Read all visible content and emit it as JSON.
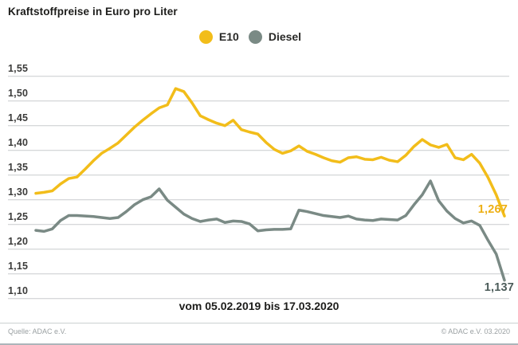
{
  "title": "Kraftstoffpreise in Euro pro Liter",
  "legend": [
    {
      "label": "E10",
      "color": "#F2BD1A"
    },
    {
      "label": "Diesel",
      "color": "#7A8A85"
    }
  ],
  "chart_data": {
    "type": "line",
    "title": "Kraftstoffpreise in Euro pro Liter",
    "ylabel": "Euro pro Liter",
    "x_caption": "vom 05.02.2019 bis 17.03.2020",
    "x_range": [
      "05.02.2019",
      "17.03.2020"
    ],
    "x_unit": "weeks",
    "ylim": [
      1.1,
      1.55
    ],
    "yticks": [
      1.55,
      1.5,
      1.45,
      1.4,
      1.35,
      1.3,
      1.25,
      1.2,
      1.15,
      1.1
    ],
    "ytick_labels": [
      "1,55",
      "1,50",
      "1,45",
      "1,40",
      "1,35",
      "1,30",
      "1,25",
      "1,20",
      "1,15",
      "1,10"
    ],
    "grid": true,
    "legend_position": "top-center",
    "gridline_color": "#c8cccd",
    "series": [
      {
        "name": "E10",
        "color": "#F2BD1A",
        "end_label": "1,267",
        "end_label_color": "#EDAF14",
        "values": [
          1.313,
          1.315,
          1.318,
          1.332,
          1.343,
          1.346,
          1.362,
          1.379,
          1.394,
          1.404,
          1.415,
          1.431,
          1.447,
          1.461,
          1.474,
          1.486,
          1.492,
          1.525,
          1.519,
          1.496,
          1.47,
          1.462,
          1.455,
          1.45,
          1.461,
          1.442,
          1.437,
          1.433,
          1.416,
          1.402,
          1.394,
          1.399,
          1.409,
          1.398,
          1.392,
          1.385,
          1.379,
          1.376,
          1.385,
          1.387,
          1.382,
          1.381,
          1.386,
          1.38,
          1.377,
          1.39,
          1.408,
          1.422,
          1.411,
          1.406,
          1.412,
          1.385,
          1.381,
          1.392,
          1.374,
          1.345,
          1.31,
          1.267
        ]
      },
      {
        "name": "Diesel",
        "color": "#7A8A85",
        "end_label": "1,137",
        "end_label_color": "#4C5C5A",
        "values": [
          1.238,
          1.236,
          1.241,
          1.258,
          1.268,
          1.268,
          1.267,
          1.266,
          1.264,
          1.262,
          1.264,
          1.276,
          1.29,
          1.3,
          1.306,
          1.322,
          1.299,
          1.285,
          1.271,
          1.262,
          1.256,
          1.259,
          1.261,
          1.254,
          1.257,
          1.256,
          1.251,
          1.237,
          1.239,
          1.24,
          1.24,
          1.241,
          1.279,
          1.276,
          1.272,
          1.268,
          1.266,
          1.264,
          1.267,
          1.261,
          1.259,
          1.258,
          1.261,
          1.26,
          1.259,
          1.268,
          1.29,
          1.31,
          1.338,
          1.298,
          1.277,
          1.262,
          1.253,
          1.257,
          1.248,
          1.218,
          1.19,
          1.137
        ]
      }
    ]
  },
  "footer": {
    "source_left": "Quelle: ADAC e.V.",
    "source_right": "© ADAC e.V.  03.2020"
  }
}
